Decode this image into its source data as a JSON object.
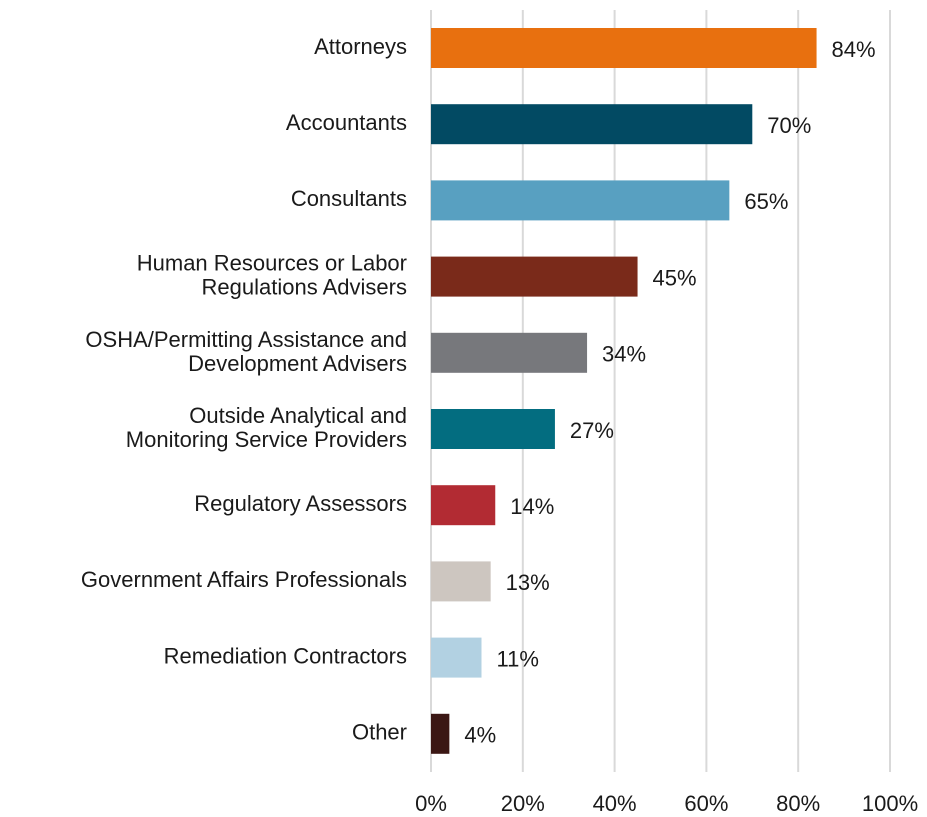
{
  "chart_data": {
    "type": "hbar",
    "categories": [
      "Attorneys",
      "Accountants",
      "Consultants",
      "Human Resources or Labor\nRegulations Advisers",
      "OSHA/Permitting Assistance and\nDevelopment Advisers",
      "Outside Analytical and\nMonitoring Service Providers",
      "Regulatory Assessors",
      "Government Affairs Professionals",
      "Remediation Contractors",
      "Other"
    ],
    "values": [
      84,
      70,
      65,
      45,
      34,
      27,
      14,
      13,
      11,
      4
    ],
    "value_labels": [
      "84%",
      "70%",
      "65%",
      "45%",
      "34%",
      "27%",
      "14%",
      "13%",
      "11%",
      "4%"
    ],
    "colors": [
      "#e8700f",
      "#024a63",
      "#58a0c1",
      "#7a2a1a",
      "#77787c",
      "#036d80",
      "#b22b33",
      "#cdc6c0",
      "#b2d1e2",
      "#3b1714"
    ],
    "xlim": [
      0,
      100
    ],
    "xticks": [
      {
        "value": 0,
        "label": "0%"
      },
      {
        "value": 20,
        "label": "20%"
      },
      {
        "value": 40,
        "label": "40%"
      },
      {
        "value": 60,
        "label": "60%"
      },
      {
        "value": 80,
        "label": "80%"
      },
      {
        "value": 100,
        "label": "100%"
      }
    ],
    "grid": true
  }
}
